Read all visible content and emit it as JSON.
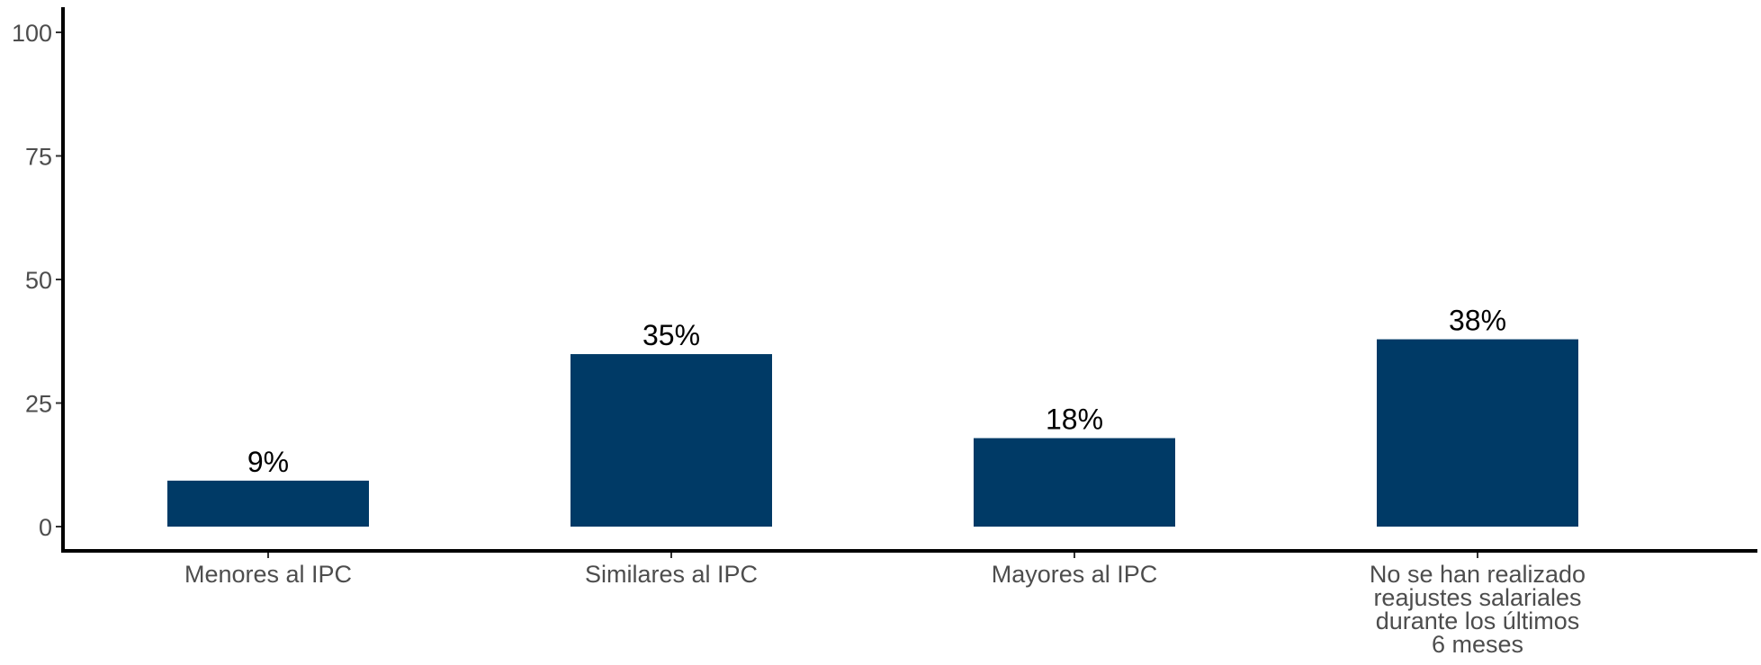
{
  "chart_data": {
    "type": "bar",
    "categories": [
      [
        "Menores al IPC"
      ],
      [
        "Similares al IPC"
      ],
      [
        "Mayores al IPC"
      ],
      [
        "No se han realizado",
        "reajustes salariales",
        "durante los últimos",
        "6 meses"
      ]
    ],
    "values": [
      9.3,
      34.9,
      17.9,
      37.9
    ],
    "data_labels": [
      "9%",
      "35%",
      "18%",
      "38%"
    ],
    "yticks": [
      "0",
      "25",
      "50",
      "75",
      "100"
    ],
    "ylim": [
      0,
      100
    ],
    "grid": false,
    "legend": "none",
    "bar_color": "#003a66",
    "title": "",
    "xlabel": "",
    "ylabel": ""
  }
}
